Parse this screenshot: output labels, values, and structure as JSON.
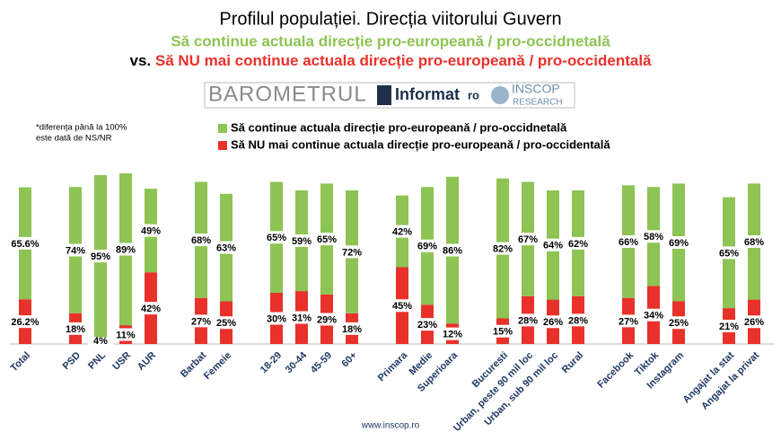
{
  "chart_data": {
    "type": "stacked-bar",
    "title": "Profilul populației. Direcția viitorului Guvern",
    "subtitle": "Să continue actuala direcție pro-europeană / pro-occidnetală",
    "subtitle_prefix": "vs.",
    "subtitle_2": "Să NU mai continue actuala direcție pro-europeană / pro-occidentală",
    "brand": {
      "barometer": "BAROMETRUL",
      "informat": "Informat",
      "ro": "ro",
      "inscop": "INSCOP",
      "research": "RESEARCH"
    },
    "note": [
      "*diferența până la 100%",
      "este dată de NS/NR"
    ],
    "footer": "www.inscop.ro",
    "categories": [
      "Total",
      "PSD",
      "PNL",
      "USR",
      "AUR",
      "Barbat",
      "Femeie",
      "18-29",
      "30-44",
      "45-59",
      "60+",
      "Primara",
      "Medie",
      "Superioara",
      "Bucuresti",
      "Urban, peste 90 mil loc",
      "Urban, sub 90 mil loc",
      "Rural",
      "Facebook",
      "Tiktok",
      "Instagram",
      "Angajat la stat",
      "Angajat la privat"
    ],
    "series": [
      {
        "name": "Să NU mai continue actuala direcție pro-europeană / pro-occidentală",
        "color": "#e8312a",
        "values": [
          26.2,
          18,
          4,
          11,
          42,
          27,
          25,
          30,
          31,
          29,
          18,
          45,
          23,
          12,
          15,
          28,
          26,
          28,
          27,
          34,
          25,
          21,
          26
        ],
        "value_labels": [
          "26.2%",
          "18%",
          "4%",
          "11%",
          "42%",
          "27%",
          "25%",
          "30%",
          "31%",
          "29%",
          "18%",
          "45%",
          "23%",
          "12%",
          "15%",
          "28%",
          "26%",
          "28%",
          "27%",
          "34%",
          "25%",
          "21%",
          "26%"
        ]
      },
      {
        "name": "Să continue actuala direcție pro-europeană / pro-occidnetală",
        "color": "#8dc453",
        "values": [
          65.6,
          74,
          95,
          89,
          49,
          68,
          63,
          65,
          59,
          65,
          72,
          42,
          69,
          86,
          82,
          67,
          64,
          62,
          66,
          58,
          69,
          65,
          68
        ],
        "value_labels": [
          "65.6%",
          "74%",
          "95%",
          "89%",
          "49%",
          "68%",
          "63%",
          "65%",
          "59%",
          "65%",
          "72%",
          "42%",
          "69%",
          "86%",
          "82%",
          "67%",
          "64%",
          "62%",
          "66%",
          "58%",
          "69%",
          "65%",
          "68%"
        ]
      }
    ],
    "legend": "top"
  }
}
